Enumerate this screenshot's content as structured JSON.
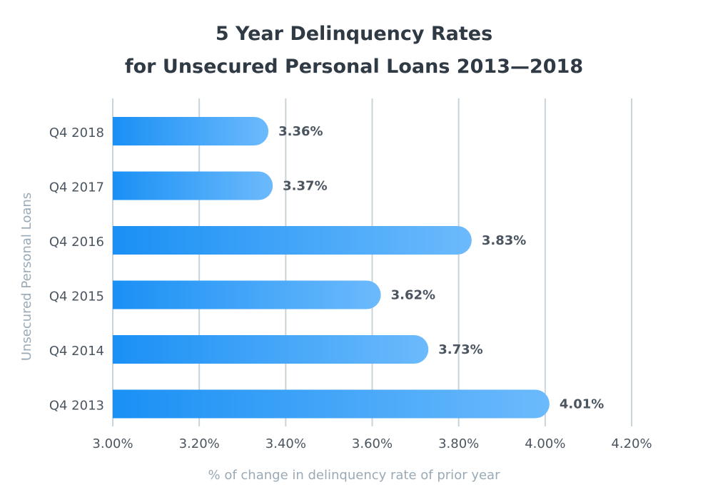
{
  "chart_data": {
    "type": "bar",
    "orientation": "horizontal",
    "title_line1": "5 Year Delinquency Rates",
    "title_line2": "for Unsecured Personal Loans 2013—2018",
    "xlabel": "% of change in delinquency rate of prior year",
    "ylabel": "Unsecured Personal Loans",
    "categories": [
      "Q4 2018",
      "Q4 2017",
      "Q4 2016",
      "Q4 2015",
      "Q4 2014",
      "Q4 2013"
    ],
    "values": [
      3.36,
      3.37,
      3.83,
      3.62,
      3.73,
      4.01
    ],
    "value_labels": [
      "3.36%",
      "3.37%",
      "3.83%",
      "3.62%",
      "3.73%",
      "4.01%"
    ],
    "xlim": [
      3.0,
      4.2
    ],
    "xticks": [
      3.0,
      3.2,
      3.4,
      3.6,
      3.8,
      4.0,
      4.2
    ],
    "xtick_labels": [
      "3.00%",
      "3.20%",
      "3.40%",
      "3.60%",
      "3.80%",
      "4.00%",
      "4.20%"
    ],
    "grid": true,
    "colors": {
      "bar_start": "#1a90f5",
      "bar_end": "#6cbafc",
      "grid": "#c9d3da",
      "text": "#4b5560",
      "axis_label": "#9aaab6",
      "title": "#2f3a44"
    }
  }
}
